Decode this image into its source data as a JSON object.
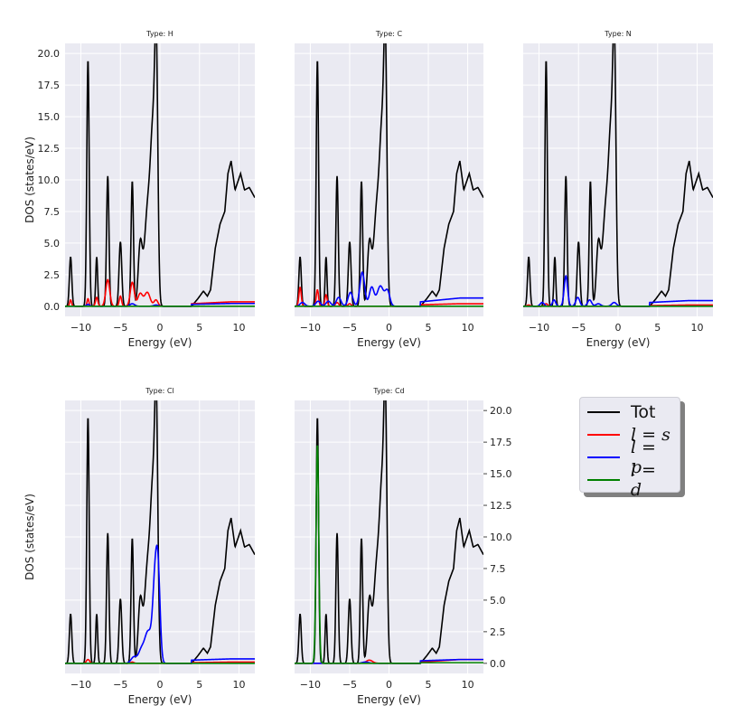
{
  "chart_data": [
    {
      "type": "line",
      "title": "Type: H",
      "xlabel": "Energy (eV)",
      "ylabel": "DOS (states/eV)",
      "xlim": [
        -12,
        12
      ],
      "ylim": [
        -0.8,
        20.8
      ],
      "grid": true,
      "y_ticks_side": "left",
      "peaks": {
        "s": [
          [
            -11.3,
            0.5,
            0.12
          ],
          [
            -9.1,
            0.6,
            0.12
          ],
          [
            -8.0,
            0.7,
            0.15
          ],
          [
            -6.6,
            2.1,
            0.25
          ],
          [
            -5.0,
            0.8,
            0.15
          ],
          [
            -3.5,
            1.9,
            0.25
          ],
          [
            -2.5,
            1.0,
            0.3
          ],
          [
            -1.6,
            1.1,
            0.35
          ],
          [
            -0.5,
            0.5,
            0.25
          ]
        ],
        "p": [
          [
            -9.1,
            0.15,
            0.2
          ],
          [
            -3.5,
            0.2,
            0.3
          ],
          [
            -0.5,
            0.1,
            0.3
          ]
        ],
        "d": []
      },
      "tail": {
        "s": [
          0.35,
          0.2
        ],
        "p": [
          0.22,
          0.15
        ],
        "d": [
          0,
          0
        ]
      }
    },
    {
      "type": "line",
      "title": "Type: C",
      "xlabel": "Energy (eV)",
      "ylabel": "",
      "xlim": [
        -12,
        12
      ],
      "ylim": [
        -0.8,
        20.8
      ],
      "grid": true,
      "y_ticks_side": "none",
      "peaks": {
        "s": [
          [
            -11.3,
            1.5,
            0.15
          ],
          [
            -9.1,
            1.3,
            0.15
          ],
          [
            -8.0,
            0.9,
            0.15
          ],
          [
            -6.6,
            0.3,
            0.2
          ],
          [
            -5.0,
            0.2,
            0.2
          ]
        ],
        "p": [
          [
            -11.0,
            0.3,
            0.3
          ],
          [
            -9.0,
            0.4,
            0.3
          ],
          [
            -7.7,
            0.4,
            0.3
          ],
          [
            -6.4,
            0.7,
            0.3
          ],
          [
            -4.9,
            1.1,
            0.3
          ],
          [
            -3.4,
            2.7,
            0.3
          ],
          [
            -2.2,
            1.5,
            0.3
          ],
          [
            -1.1,
            1.6,
            0.4
          ],
          [
            -0.2,
            1.2,
            0.3
          ]
        ],
        "d": []
      },
      "tail": {
        "s": [
          0.2,
          0.12
        ],
        "p": [
          0.65,
          0.35
        ],
        "d": [
          0,
          0
        ]
      }
    },
    {
      "type": "line",
      "title": "Type: N",
      "xlabel": "Energy (eV)",
      "ylabel": "",
      "xlim": [
        -12,
        12
      ],
      "ylim": [
        -0.8,
        20.8
      ],
      "grid": true,
      "y_ticks_side": "none",
      "peaks": {
        "s": [
          [
            -11.3,
            0.1,
            0.2
          ],
          [
            -9.1,
            0.2,
            0.2
          ]
        ],
        "p": [
          [
            -9.6,
            0.3,
            0.25
          ],
          [
            -8.1,
            0.5,
            0.2
          ],
          [
            -6.6,
            2.4,
            0.22
          ],
          [
            -5.1,
            0.7,
            0.25
          ],
          [
            -3.6,
            0.5,
            0.25
          ],
          [
            -2.5,
            0.2,
            0.3
          ],
          [
            -0.5,
            0.3,
            0.3
          ]
        ],
        "d": []
      },
      "tail": {
        "s": [
          0.1,
          0.05
        ],
        "p": [
          0.45,
          0.3
        ],
        "d": [
          0,
          0
        ]
      }
    },
    {
      "type": "line",
      "title": "Type: Cl",
      "xlabel": "Energy (eV)",
      "ylabel": "DOS (states/eV)",
      "xlim": [
        -12,
        12
      ],
      "ylim": [
        -0.8,
        20.8
      ],
      "grid": true,
      "y_ticks_side": "none",
      "peaks": {
        "s": [
          [
            -9.1,
            0.3,
            0.2
          ],
          [
            -3.5,
            0.1,
            0.2
          ]
        ],
        "p": [
          [
            -3.3,
            0.5,
            0.35
          ],
          [
            -2.4,
            0.9,
            0.35
          ],
          [
            -1.5,
            2.5,
            0.45
          ],
          [
            -0.6,
            6.5,
            0.3
          ],
          [
            -0.2,
            5.5,
            0.25
          ]
        ],
        "d": []
      },
      "tail": {
        "s": [
          0.1,
          0.05
        ],
        "p": [
          0.35,
          0.25
        ],
        "d": [
          0,
          0
        ]
      }
    },
    {
      "type": "line",
      "title": "Type: Cd",
      "xlabel": "Energy (eV)",
      "ylabel": "",
      "xlim": [
        -12,
        12
      ],
      "ylim": [
        -0.8,
        20.8
      ],
      "grid": true,
      "y_ticks_side": "right",
      "peaks": {
        "s": [
          [
            -2.5,
            0.25,
            0.4
          ]
        ],
        "p": [
          [
            -3.0,
            0.1,
            0.4
          ]
        ],
        "d": [
          [
            -9.1,
            17.3,
            0.17
          ]
        ]
      },
      "tail": {
        "s": [
          0.3,
          0.1
        ],
        "p": [
          0.3,
          0.2
        ],
        "d": [
          0.05,
          0.05
        ]
      }
    }
  ],
  "tot_peaks": [
    [
      -11.3,
      3.9,
      0.15
    ],
    [
      -9.1,
      19.5,
      0.15
    ],
    [
      -8.0,
      3.9,
      0.12
    ],
    [
      -6.6,
      10.3,
      0.15
    ],
    [
      -5.0,
      5.1,
      0.17
    ],
    [
      -3.5,
      9.9,
      0.15
    ],
    [
      -2.5,
      4.6,
      0.25
    ],
    [
      -1.5,
      8.0,
      0.45
    ],
    [
      -0.85,
      11.0,
      0.3
    ],
    [
      -0.45,
      17.0,
      0.2
    ]
  ],
  "tot_band": [
    [
      4,
      0
    ],
    [
      4.8,
      0.6
    ],
    [
      5.5,
      1.2
    ],
    [
      6,
      0.8
    ],
    [
      6.4,
      1.3
    ],
    [
      7,
      4.6
    ],
    [
      7.6,
      6.5
    ],
    [
      8.2,
      7.5
    ],
    [
      8.6,
      10.5
    ],
    [
      9,
      11.5
    ],
    [
      9.5,
      9.2
    ],
    [
      10.2,
      10.5
    ],
    [
      10.7,
      9.2
    ],
    [
      11.3,
      9.4
    ],
    [
      12,
      8.6
    ]
  ],
  "xticks": [
    -10,
    -5,
    0,
    5,
    10
  ],
  "yticks": [
    "0.0",
    "2.5",
    "5.0",
    "7.5",
    "10.0",
    "12.5",
    "15.0",
    "17.5",
    "20.0"
  ],
  "legend": {
    "entries": [
      {
        "label": "Tot",
        "color": "#000000",
        "math": false
      },
      {
        "label": "l = s",
        "color": "#ff0000",
        "math": true
      },
      {
        "label": "l = p",
        "color": "#0000ff",
        "math": true
      },
      {
        "label": "l = d",
        "color": "#008000",
        "math": true
      }
    ]
  },
  "colors": {
    "tot": "#000000",
    "s": "#ff0000",
    "p": "#0000ff",
    "d": "#008000",
    "panel_bg": "#eaeaf2",
    "grid": "#ffffff"
  }
}
